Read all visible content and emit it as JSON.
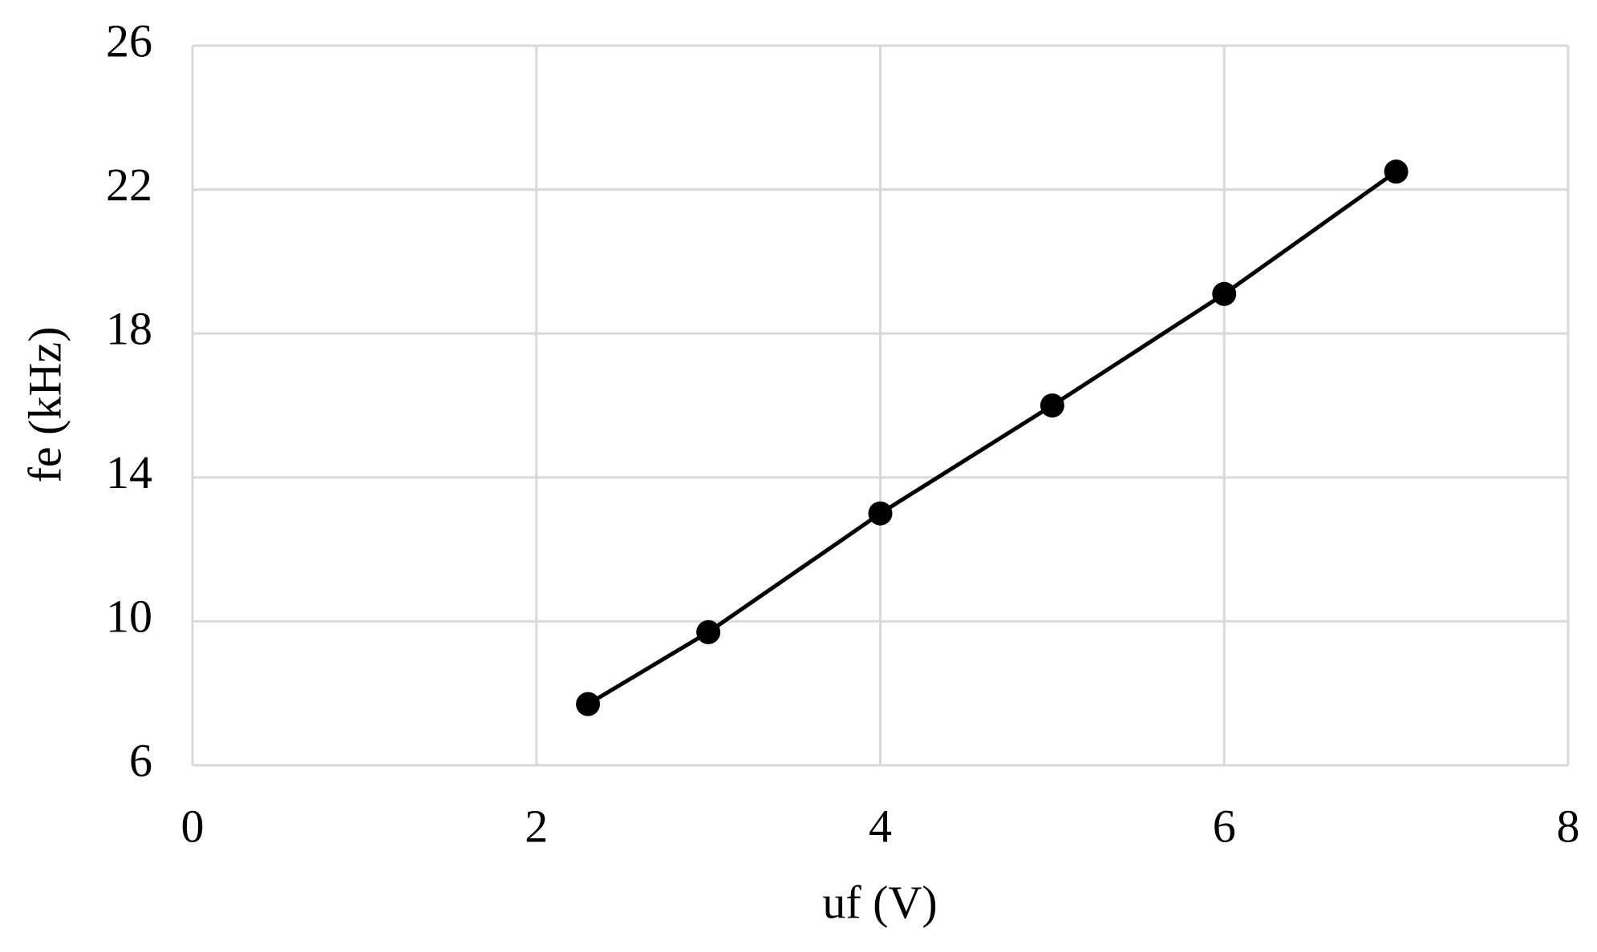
{
  "chart_data": {
    "type": "line",
    "x_label": "uf (V)",
    "y_label": "fe (kHz)",
    "x": [
      2.3,
      3,
      4,
      5,
      6,
      7
    ],
    "series": [
      {
        "color": "#000000",
        "values": [
          7.7,
          9.7,
          13.0,
          16.0,
          19.1,
          22.5
        ]
      }
    ],
    "xlim": [
      0,
      8
    ],
    "xticks": [
      0,
      2,
      4,
      6,
      8
    ],
    "ylim": [
      6,
      26
    ],
    "yticks": [
      6,
      10,
      14,
      18,
      22,
      26
    ],
    "grid": true
  }
}
